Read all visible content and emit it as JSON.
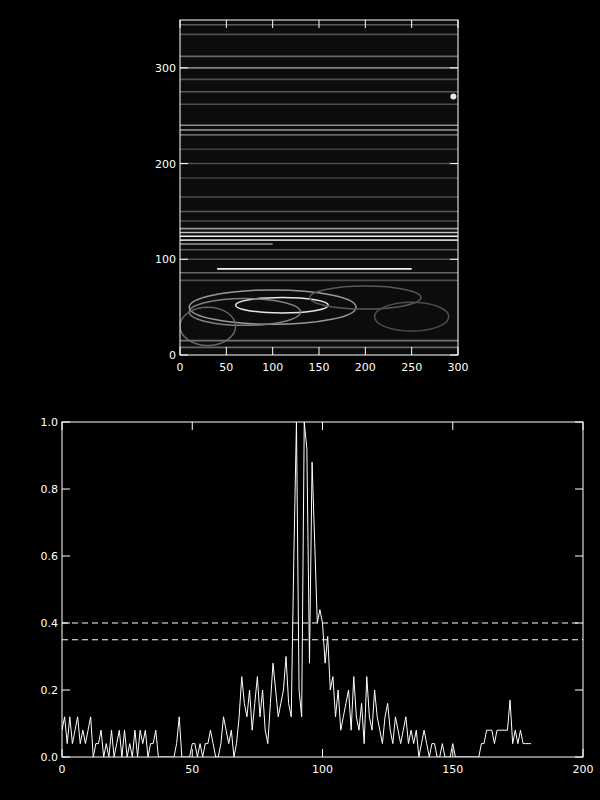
{
  "chart_data": [
    {
      "type": "image",
      "xlim": [
        0,
        300
      ],
      "ylim": [
        0,
        350
      ],
      "xticks": [
        0,
        50,
        100,
        150,
        200,
        250,
        300
      ],
      "yticks": [
        0,
        100,
        200,
        300
      ],
      "streaks": [
        {
          "y": 345,
          "x0": 0,
          "x1": 300,
          "intensity": 0.35
        },
        {
          "y": 335,
          "x0": 0,
          "x1": 300,
          "intensity": 0.3
        },
        {
          "y": 312,
          "x0": 0,
          "x1": 300,
          "intensity": 0.4
        },
        {
          "y": 300,
          "x0": 0,
          "x1": 300,
          "intensity": 0.5
        },
        {
          "y": 288,
          "x0": 0,
          "x1": 300,
          "intensity": 0.3
        },
        {
          "y": 275,
          "x0": 0,
          "x1": 300,
          "intensity": 0.35
        },
        {
          "y": 262,
          "x0": 0,
          "x1": 300,
          "intensity": 0.3
        },
        {
          "y": 240,
          "x0": 0,
          "x1": 300,
          "intensity": 0.55
        },
        {
          "y": 235,
          "x0": 0,
          "x1": 300,
          "intensity": 0.6
        },
        {
          "y": 230,
          "x0": 0,
          "x1": 300,
          "intensity": 0.4
        },
        {
          "y": 215,
          "x0": 0,
          "x1": 300,
          "intensity": 0.25
        },
        {
          "y": 200,
          "x0": 0,
          "x1": 300,
          "intensity": 0.3
        },
        {
          "y": 185,
          "x0": 0,
          "x1": 300,
          "intensity": 0.25
        },
        {
          "y": 165,
          "x0": 0,
          "x1": 300,
          "intensity": 0.3
        },
        {
          "y": 150,
          "x0": 0,
          "x1": 300,
          "intensity": 0.35
        },
        {
          "y": 140,
          "x0": 0,
          "x1": 300,
          "intensity": 0.3
        },
        {
          "y": 132,
          "x0": 0,
          "x1": 300,
          "intensity": 0.6
        },
        {
          "y": 128,
          "x0": 0,
          "x1": 300,
          "intensity": 0.75
        },
        {
          "y": 124,
          "x0": 0,
          "x1": 300,
          "intensity": 0.95
        },
        {
          "y": 120,
          "x0": 0,
          "x1": 300,
          "intensity": 0.8
        },
        {
          "y": 116,
          "x0": 0,
          "x1": 100,
          "intensity": 0.6
        },
        {
          "y": 110,
          "x0": 0,
          "x1": 300,
          "intensity": 0.35
        },
        {
          "y": 100,
          "x0": 0,
          "x1": 300,
          "intensity": 0.3
        },
        {
          "y": 90,
          "x0": 40,
          "x1": 250,
          "intensity": 0.95
        },
        {
          "y": 86,
          "x0": 0,
          "x1": 300,
          "intensity": 0.4
        },
        {
          "y": 78,
          "x0": 0,
          "x1": 300,
          "intensity": 0.3
        },
        {
          "y": 15,
          "x0": 0,
          "x1": 300,
          "intensity": 0.45
        },
        {
          "y": 8,
          "x0": 0,
          "x1": 300,
          "intensity": 0.4
        }
      ],
      "ellipses": [
        {
          "cx": 100,
          "cy": 50,
          "rx": 90,
          "ry": 18,
          "intensity": 0.6
        },
        {
          "cx": 110,
          "cy": 52,
          "rx": 50,
          "ry": 8,
          "intensity": 0.9
        },
        {
          "cx": 70,
          "cy": 45,
          "rx": 60,
          "ry": 14,
          "intensity": 0.5
        },
        {
          "cx": 200,
          "cy": 60,
          "rx": 60,
          "ry": 12,
          "intensity": 0.35
        },
        {
          "cx": 30,
          "cy": 30,
          "rx": 30,
          "ry": 20,
          "intensity": 0.4
        },
        {
          "cx": 250,
          "cy": 40,
          "rx": 40,
          "ry": 15,
          "intensity": 0.3
        }
      ],
      "spots": [
        {
          "x": 295,
          "y": 270,
          "intensity": 0.9
        }
      ]
    },
    {
      "type": "line",
      "color": "#ffffff",
      "xlim": [
        0,
        200
      ],
      "ylim": [
        0,
        1
      ],
      "xticks": [
        0,
        50,
        100,
        150,
        200
      ],
      "yticks": [
        {
          "value": 0,
          "label": "0.0"
        },
        {
          "value": 0.2,
          "label": "0.2"
        },
        {
          "value": 0.4,
          "label": "0.4"
        },
        {
          "value": 0.6,
          "label": "0.6"
        },
        {
          "value": 0.8,
          "label": "0.8"
        },
        {
          "value": 1,
          "label": "1.0"
        }
      ],
      "reference_lines": [
        0.4,
        0.35
      ],
      "x": [
        0,
        1,
        2,
        3,
        4,
        5,
        6,
        7,
        8,
        9,
        10,
        11,
        12,
        13,
        14,
        15,
        16,
        17,
        18,
        19,
        20,
        21,
        22,
        23,
        24,
        25,
        26,
        27,
        28,
        29,
        30,
        31,
        32,
        33,
        34,
        35,
        36,
        37,
        38,
        39,
        40,
        41,
        42,
        43,
        44,
        45,
        46,
        47,
        48,
        49,
        50,
        51,
        52,
        53,
        54,
        55,
        56,
        57,
        58,
        59,
        60,
        61,
        62,
        63,
        64,
        65,
        66,
        67,
        68,
        69,
        70,
        71,
        72,
        73,
        74,
        75,
        76,
        77,
        78,
        79,
        80,
        81,
        82,
        83,
        84,
        85,
        86,
        87,
        88,
        89,
        90,
        91,
        92,
        93,
        94,
        95,
        96,
        97,
        98,
        99,
        100,
        101,
        102,
        103,
        104,
        105,
        106,
        107,
        108,
        109,
        110,
        111,
        112,
        113,
        114,
        115,
        116,
        117,
        118,
        119,
        120,
        121,
        122,
        123,
        124,
        125,
        126,
        127,
        128,
        129,
        130,
        131,
        132,
        133,
        134,
        135,
        136,
        137,
        138,
        139,
        140,
        141,
        142,
        143,
        144,
        145,
        146,
        147,
        148,
        149,
        150,
        151,
        152,
        153,
        154,
        155,
        156,
        157,
        158,
        159,
        160,
        161,
        162,
        163,
        164,
        165,
        166,
        167,
        168,
        169,
        170,
        171,
        172,
        173,
        174,
        175,
        176,
        177,
        178,
        179,
        180
      ],
      "values": [
        0.08,
        0.12,
        0.04,
        0.12,
        0.04,
        0.08,
        0.12,
        0.04,
        0.08,
        0.04,
        0.08,
        0.12,
        0.0,
        0.04,
        0.04,
        0.08,
        0.0,
        0.04,
        0.0,
        0.08,
        0.0,
        0.04,
        0.08,
        0.0,
        0.08,
        0.0,
        0.04,
        0.0,
        0.08,
        0.0,
        0.08,
        0.04,
        0.08,
        0.0,
        0.04,
        0.04,
        0.08,
        0.0,
        0.0,
        0.0,
        0.0,
        0.0,
        0.0,
        0.0,
        0.04,
        0.12,
        0.0,
        0.0,
        0.0,
        0.0,
        0.04,
        0.04,
        0.0,
        0.04,
        0.0,
        0.04,
        0.04,
        0.08,
        0.04,
        0.0,
        0.0,
        0.04,
        0.12,
        0.08,
        0.04,
        0.08,
        0.0,
        0.04,
        0.12,
        0.24,
        0.16,
        0.12,
        0.2,
        0.08,
        0.16,
        0.24,
        0.12,
        0.2,
        0.08,
        0.04,
        0.16,
        0.28,
        0.2,
        0.12,
        0.16,
        0.2,
        0.3,
        0.16,
        0.12,
        0.6,
        1.0,
        0.2,
        0.12,
        1.0,
        0.92,
        0.28,
        0.88,
        0.64,
        0.4,
        0.44,
        0.4,
        0.28,
        0.36,
        0.2,
        0.24,
        0.12,
        0.2,
        0.08,
        0.12,
        0.16,
        0.2,
        0.08,
        0.24,
        0.12,
        0.08,
        0.16,
        0.04,
        0.24,
        0.12,
        0.08,
        0.2,
        0.12,
        0.08,
        0.04,
        0.12,
        0.16,
        0.08,
        0.04,
        0.12,
        0.08,
        0.04,
        0.08,
        0.12,
        0.04,
        0.08,
        0.04,
        0.08,
        0.0,
        0.04,
        0.08,
        0.04,
        0.0,
        0.04,
        0.04,
        0.0,
        0.0,
        0.04,
        0.0,
        0.0,
        0.0,
        0.04,
        0.0,
        0.0,
        0.0,
        0.0,
        0.0,
        0.0,
        0.0,
        0.0,
        0.0,
        0.0,
        0.04,
        0.04,
        0.08,
        0.08,
        0.08,
        0.04,
        0.08,
        0.08,
        0.08,
        0.08,
        0.08,
        0.17,
        0.04,
        0.08,
        0.04,
        0.08,
        0.04,
        0.04,
        0.04,
        0.04
      ]
    }
  ]
}
